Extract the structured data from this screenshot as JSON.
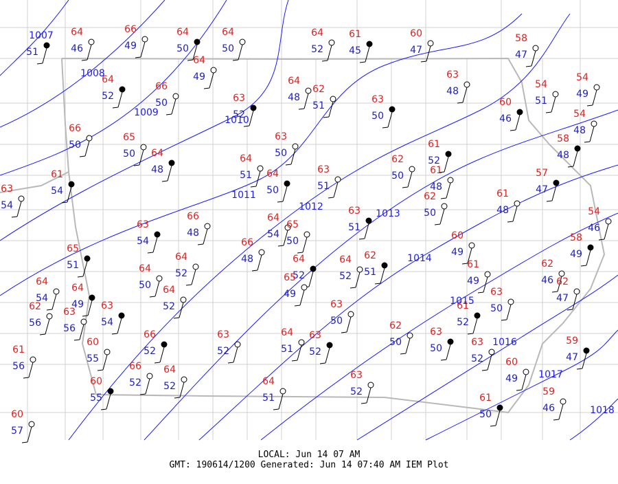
{
  "stations": [
    {
      "dew": 51
    },
    {
      "temp": 64,
      "dew": 46
    },
    {
      "temp": 66,
      "dew": 49
    },
    {
      "temp": 64,
      "dew": 50
    },
    {
      "temp": 64,
      "dew": 50
    },
    {
      "temp": 64,
      "dew": 52
    },
    {
      "temp": 61,
      "dew": 45
    },
    {
      "temp": 60,
      "dew": 47
    },
    {
      "temp": 58,
      "dew": 47
    },
    {
      "temp": 64,
      "dew": 52
    },
    {
      "temp": 66,
      "dew": 50
    },
    {
      "temp": 64,
      "dew": 49
    },
    {
      "temp": 63,
      "dew": 52
    },
    {
      "temp": 64,
      "dew": 48
    },
    {
      "temp": 62,
      "dew": 51
    },
    {
      "temp": 63,
      "dew": 50
    },
    {
      "temp": 63,
      "dew": 48
    },
    {
      "temp": 54,
      "dew": 51
    },
    {
      "temp": 60,
      "dew": 46
    },
    {
      "temp": 54,
      "dew": 49
    },
    {
      "temp": 54,
      "dew": 48
    },
    {
      "temp": 58,
      "dew": 48
    },
    {
      "temp": 66,
      "dew": 50
    },
    {
      "temp": 65,
      "dew": 50
    },
    {
      "temp": 64,
      "dew": 48
    },
    {
      "temp": 64,
      "dew": 51
    },
    {
      "temp": 63,
      "dew": 50
    },
    {
      "temp": 64,
      "dew": 50
    },
    {
      "temp": 63,
      "dew": 51
    },
    {
      "temp": 62,
      "dew": 50
    },
    {
      "temp": 61,
      "dew": 52
    },
    {
      "temp": 61,
      "dew": 48
    },
    {
      "temp": 62,
      "dew": 50
    },
    {
      "temp": 57,
      "dew": 47
    },
    {
      "temp": 61,
      "dew": 48
    },
    {
      "temp": 54,
      "dew": 46
    },
    {
      "temp": 61,
      "dew": 54
    },
    {
      "temp": 63,
      "dew": 54
    },
    {
      "temp": 66,
      "dew": 48
    },
    {
      "temp": 63,
      "dew": 54
    },
    {
      "temp": 64,
      "dew": 54
    },
    {
      "temp": 65,
      "dew": 50
    },
    {
      "temp": 63,
      "dew": 51
    },
    {
      "temp": 66,
      "dew": 48
    },
    {
      "temp": 64,
      "dew": 52
    },
    {
      "temp": 64,
      "dew": 52
    },
    {
      "temp": 65,
      "dew": 49
    },
    {
      "temp": 64,
      "dew": 52
    },
    {
      "temp": 62,
      "dew": 51
    },
    {
      "temp": 60,
      "dew": 49
    },
    {
      "temp": 61,
      "dew": 49
    },
    {
      "temp": 58,
      "dew": 49
    },
    {
      "temp": 62,
      "dew": 46
    },
    {
      "temp": 62,
      "dew": 47
    },
    {
      "temp": 65,
      "dew": 51
    },
    {
      "temp": 64,
      "dew": 50
    },
    {
      "temp": 64,
      "dew": 54
    },
    {
      "temp": 64,
      "dew": 49
    },
    {
      "temp": 62,
      "dew": 56
    },
    {
      "temp": 63,
      "dew": 56
    },
    {
      "temp": 63,
      "dew": 54
    },
    {
      "temp": 64,
      "dew": 52
    },
    {
      "temp": 63,
      "dew": 50
    },
    {
      "temp": 61,
      "dew": 52
    },
    {
      "temp": 63,
      "dew": 50
    },
    {
      "temp": 62,
      "dew": 50
    },
    {
      "temp": 63,
      "dew": 50
    },
    {
      "temp": 61,
      "dew": 56
    },
    {
      "temp": 60,
      "dew": 55
    },
    {
      "temp": 66,
      "dew": 52
    },
    {
      "temp": 63,
      "dew": 52
    },
    {
      "temp": 64,
      "dew": 51
    },
    {
      "temp": 63,
      "dew": 52
    },
    {
      "temp": 63,
      "dew": 52
    },
    {
      "temp": 60,
      "dew": 49
    },
    {
      "temp": 59,
      "dew": 47
    },
    {
      "temp": 66,
      "dew": 52
    },
    {
      "temp": 64,
      "dew": 52
    },
    {
      "temp": 60,
      "dew": 55
    },
    {
      "temp": 64,
      "dew": 51
    },
    {
      "temp": 63,
      "dew": 52
    },
    {
      "temp": 61,
      "dew": 50
    },
    {
      "temp": 59,
      "dew": 46
    },
    {
      "temp": 60,
      "dew": 57
    }
  ],
  "isobars": [
    1007,
    1008,
    1009,
    1010,
    1011,
    1012,
    1013,
    1014,
    1015,
    1016,
    1017,
    1018
  ],
  "footer": {
    "local": "LOCAL: Jun 14 07 AM",
    "generated": "GMT: 190614/1200 Generated: Jun 14 07:40 AM IEM Plot"
  }
}
